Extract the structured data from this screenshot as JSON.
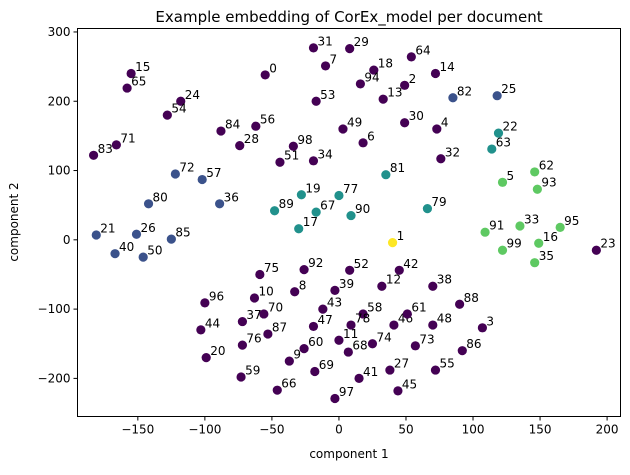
{
  "chart_data": {
    "type": "scatter",
    "title": "Example embedding of CorEx_model per document",
    "xlabel": "component 1",
    "ylabel": "component 2",
    "xlim": [
      -195,
      210
    ],
    "ylim": [
      -255,
      305
    ],
    "xticks": [
      -150,
      -100,
      -50,
      0,
      50,
      100,
      150,
      200
    ],
    "yticks": [
      -200,
      -100,
      0,
      100,
      200,
      300
    ],
    "grid": false,
    "legend": "none",
    "colormap": "viridis",
    "colors": {
      "dark_purple": "#440154",
      "blue": "#3b528b",
      "teal": "#21918c",
      "green": "#5ec962",
      "yellow": "#fde725"
    },
    "points": [
      {
        "label": "0",
        "x": -55,
        "y": 238,
        "color": "#440154"
      },
      {
        "label": "1",
        "x": 40,
        "y": -4,
        "color": "#fde725"
      },
      {
        "label": "2",
        "x": 49,
        "y": 223,
        "color": "#440154"
      },
      {
        "label": "3",
        "x": 107,
        "y": -127,
        "color": "#440154"
      },
      {
        "label": "4",
        "x": 73,
        "y": 160,
        "color": "#440154"
      },
      {
        "label": "5",
        "x": 122,
        "y": 83,
        "color": "#5ec962"
      },
      {
        "label": "6",
        "x": 18,
        "y": 140,
        "color": "#440154"
      },
      {
        "label": "7",
        "x": -10,
        "y": 251,
        "color": "#440154"
      },
      {
        "label": "8",
        "x": -33,
        "y": -75,
        "color": "#440154"
      },
      {
        "label": "9",
        "x": -37,
        "y": -175,
        "color": "#440154"
      },
      {
        "label": "10",
        "x": -63,
        "y": -84,
        "color": "#440154"
      },
      {
        "label": "11",
        "x": 0,
        "y": -145,
        "color": "#440154"
      },
      {
        "label": "12",
        "x": 32,
        "y": -67,
        "color": "#440154"
      },
      {
        "label": "13",
        "x": 33,
        "y": 203,
        "color": "#440154"
      },
      {
        "label": "14",
        "x": 72,
        "y": 240,
        "color": "#440154"
      },
      {
        "label": "15",
        "x": -155,
        "y": 240,
        "color": "#440154"
      },
      {
        "label": "16",
        "x": 149,
        "y": -5,
        "color": "#5ec962"
      },
      {
        "label": "17",
        "x": -30,
        "y": 16,
        "color": "#21918c"
      },
      {
        "label": "18",
        "x": 26,
        "y": 245,
        "color": "#440154"
      },
      {
        "label": "19",
        "x": -28,
        "y": 65,
        "color": "#21918c"
      },
      {
        "label": "20",
        "x": -99,
        "y": -170,
        "color": "#440154"
      },
      {
        "label": "21",
        "x": -181,
        "y": 7,
        "color": "#3b528b"
      },
      {
        "label": "22",
        "x": 119,
        "y": 154,
        "color": "#21918c"
      },
      {
        "label": "23",
        "x": 192,
        "y": -15,
        "color": "#440154"
      },
      {
        "label": "24",
        "x": -118,
        "y": 200,
        "color": "#440154"
      },
      {
        "label": "25",
        "x": 118,
        "y": 208,
        "color": "#3b528b"
      },
      {
        "label": "26",
        "x": -151,
        "y": 8,
        "color": "#3b528b"
      },
      {
        "label": "27",
        "x": 38,
        "y": -188,
        "color": "#440154"
      },
      {
        "label": "28",
        "x": -74,
        "y": 136,
        "color": "#440154"
      },
      {
        "label": "29",
        "x": 8,
        "y": 276,
        "color": "#440154"
      },
      {
        "label": "30",
        "x": 49,
        "y": 169,
        "color": "#440154"
      },
      {
        "label": "31",
        "x": -19,
        "y": 277,
        "color": "#440154"
      },
      {
        "label": "32",
        "x": 76,
        "y": 117,
        "color": "#440154"
      },
      {
        "label": "33",
        "x": 135,
        "y": 20,
        "color": "#5ec962"
      },
      {
        "label": "34",
        "x": -19,
        "y": 114,
        "color": "#440154"
      },
      {
        "label": "35",
        "x": 146,
        "y": -33,
        "color": "#5ec962"
      },
      {
        "label": "36",
        "x": -89,
        "y": 52,
        "color": "#3b528b"
      },
      {
        "label": "37",
        "x": -72,
        "y": -118,
        "color": "#440154"
      },
      {
        "label": "38",
        "x": 70,
        "y": -67,
        "color": "#440154"
      },
      {
        "label": "39",
        "x": -3,
        "y": -73,
        "color": "#440154"
      },
      {
        "label": "40",
        "x": -167,
        "y": -20,
        "color": "#3b528b"
      },
      {
        "label": "41",
        "x": 15,
        "y": -200,
        "color": "#440154"
      },
      {
        "label": "42",
        "x": 45,
        "y": -44,
        "color": "#440154"
      },
      {
        "label": "43",
        "x": -12,
        "y": -100,
        "color": "#440154"
      },
      {
        "label": "44",
        "x": -103,
        "y": -130,
        "color": "#440154"
      },
      {
        "label": "45",
        "x": 44,
        "y": -218,
        "color": "#440154"
      },
      {
        "label": "46",
        "x": 41,
        "y": -123,
        "color": "#440154"
      },
      {
        "label": "47",
        "x": -19,
        "y": -125,
        "color": "#440154"
      },
      {
        "label": "48",
        "x": 70,
        "y": -123,
        "color": "#440154"
      },
      {
        "label": "49",
        "x": 3,
        "y": 160,
        "color": "#440154"
      },
      {
        "label": "50",
        "x": -146,
        "y": -25,
        "color": "#3b528b"
      },
      {
        "label": "51",
        "x": -44,
        "y": 112,
        "color": "#440154"
      },
      {
        "label": "52",
        "x": 8,
        "y": -44,
        "color": "#440154"
      },
      {
        "label": "53",
        "x": -17,
        "y": 200,
        "color": "#440154"
      },
      {
        "label": "54",
        "x": -128,
        "y": 180,
        "color": "#440154"
      },
      {
        "label": "55",
        "x": 72,
        "y": -188,
        "color": "#440154"
      },
      {
        "label": "56",
        "x": -62,
        "y": 164,
        "color": "#440154"
      },
      {
        "label": "57",
        "x": -102,
        "y": 87,
        "color": "#3b528b"
      },
      {
        "label": "58",
        "x": 18,
        "y": -107,
        "color": "#440154"
      },
      {
        "label": "59",
        "x": -73,
        "y": -198,
        "color": "#440154"
      },
      {
        "label": "60",
        "x": -26,
        "y": -157,
        "color": "#440154"
      },
      {
        "label": "61",
        "x": 51,
        "y": -107,
        "color": "#440154"
      },
      {
        "label": "62",
        "x": 146,
        "y": 98,
        "color": "#5ec962"
      },
      {
        "label": "63",
        "x": 114,
        "y": 131,
        "color": "#21918c"
      },
      {
        "label": "64",
        "x": 54,
        "y": 264,
        "color": "#440154"
      },
      {
        "label": "65",
        "x": -158,
        "y": 219,
        "color": "#440154"
      },
      {
        "label": "66",
        "x": -46,
        "y": -217,
        "color": "#440154"
      },
      {
        "label": "67",
        "x": -17,
        "y": 40,
        "color": "#21918c"
      },
      {
        "label": "68",
        "x": 7,
        "y": -162,
        "color": "#440154"
      },
      {
        "label": "69",
        "x": -18,
        "y": -190,
        "color": "#440154"
      },
      {
        "label": "70",
        "x": -56,
        "y": -107,
        "color": "#440154"
      },
      {
        "label": "71",
        "x": -166,
        "y": 137,
        "color": "#440154"
      },
      {
        "label": "72",
        "x": -122,
        "y": 95,
        "color": "#3b528b"
      },
      {
        "label": "73",
        "x": 57,
        "y": -153,
        "color": "#440154"
      },
      {
        "label": "74",
        "x": 25,
        "y": -150,
        "color": "#440154"
      },
      {
        "label": "75",
        "x": -59,
        "y": -50,
        "color": "#440154"
      },
      {
        "label": "76",
        "x": -72,
        "y": -152,
        "color": "#440154"
      },
      {
        "label": "77",
        "x": 0,
        "y": 64,
        "color": "#21918c"
      },
      {
        "label": "78",
        "x": 9,
        "y": -123,
        "color": "#440154"
      },
      {
        "label": "79",
        "x": 66,
        "y": 45,
        "color": "#21918c"
      },
      {
        "label": "80",
        "x": -142,
        "y": 52,
        "color": "#3b528b"
      },
      {
        "label": "81",
        "x": 35,
        "y": 94,
        "color": "#21918c"
      },
      {
        "label": "82",
        "x": 85,
        "y": 205,
        "color": "#3b528b"
      },
      {
        "label": "83",
        "x": -183,
        "y": 122,
        "color": "#440154"
      },
      {
        "label": "84",
        "x": -88,
        "y": 157,
        "color": "#440154"
      },
      {
        "label": "85",
        "x": -125,
        "y": 1,
        "color": "#3b528b"
      },
      {
        "label": "86",
        "x": 92,
        "y": -160,
        "color": "#440154"
      },
      {
        "label": "87",
        "x": -53,
        "y": -136,
        "color": "#440154"
      },
      {
        "label": "88",
        "x": 90,
        "y": -93,
        "color": "#440154"
      },
      {
        "label": "89",
        "x": -48,
        "y": 42,
        "color": "#21918c"
      },
      {
        "label": "90",
        "x": 9,
        "y": 35,
        "color": "#21918c"
      },
      {
        "label": "91",
        "x": 109,
        "y": 11,
        "color": "#5ec962"
      },
      {
        "label": "92",
        "x": -26,
        "y": -43,
        "color": "#440154"
      },
      {
        "label": "93",
        "x": 148,
        "y": 73,
        "color": "#5ec962"
      },
      {
        "label": "94",
        "x": 16,
        "y": 225,
        "color": "#440154"
      },
      {
        "label": "95",
        "x": 165,
        "y": 18,
        "color": "#5ec962"
      },
      {
        "label": "96",
        "x": -100,
        "y": -91,
        "color": "#440154"
      },
      {
        "label": "97",
        "x": -3,
        "y": -229,
        "color": "#440154"
      },
      {
        "label": "98",
        "x": -34,
        "y": 135,
        "color": "#440154"
      },
      {
        "label": "99",
        "x": 122,
        "y": -15,
        "color": "#5ec962"
      }
    ]
  }
}
